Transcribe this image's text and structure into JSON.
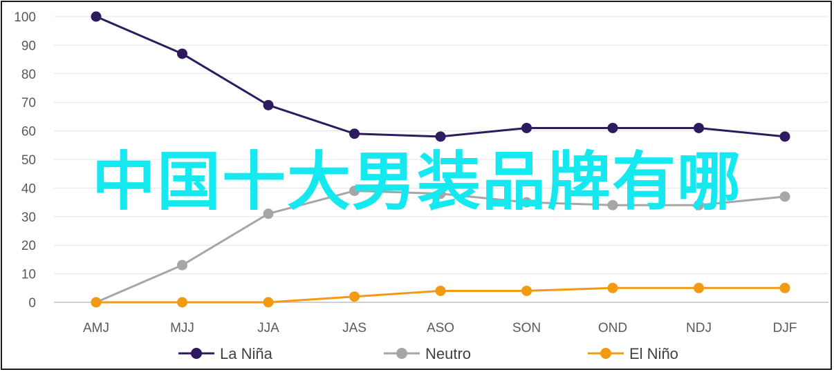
{
  "chart_data": {
    "type": "line",
    "categories": [
      "AMJ",
      "MJJ",
      "JJA",
      "JAS",
      "ASO",
      "SON",
      "OND",
      "NDJ",
      "DJF"
    ],
    "ylim": [
      0,
      100
    ],
    "yticks": [
      0,
      10,
      20,
      30,
      40,
      50,
      60,
      70,
      80,
      90,
      100
    ],
    "grid": true,
    "legend": "bottom",
    "series": [
      {
        "name": "La Niña",
        "color": "#2e1a5e",
        "values": [
          100,
          87,
          69,
          59,
          58,
          61,
          61,
          61,
          58
        ]
      },
      {
        "name": "Neutro",
        "color": "#a6a6a6",
        "values": [
          0,
          13,
          31,
          39,
          38,
          35,
          34,
          34,
          37
        ]
      },
      {
        "name": "El Niño",
        "color": "#f29a12",
        "values": [
          0,
          0,
          0,
          2,
          4,
          4,
          5,
          5,
          5
        ]
      }
    ]
  },
  "overlay_text": "中国十大男装品牌有哪"
}
